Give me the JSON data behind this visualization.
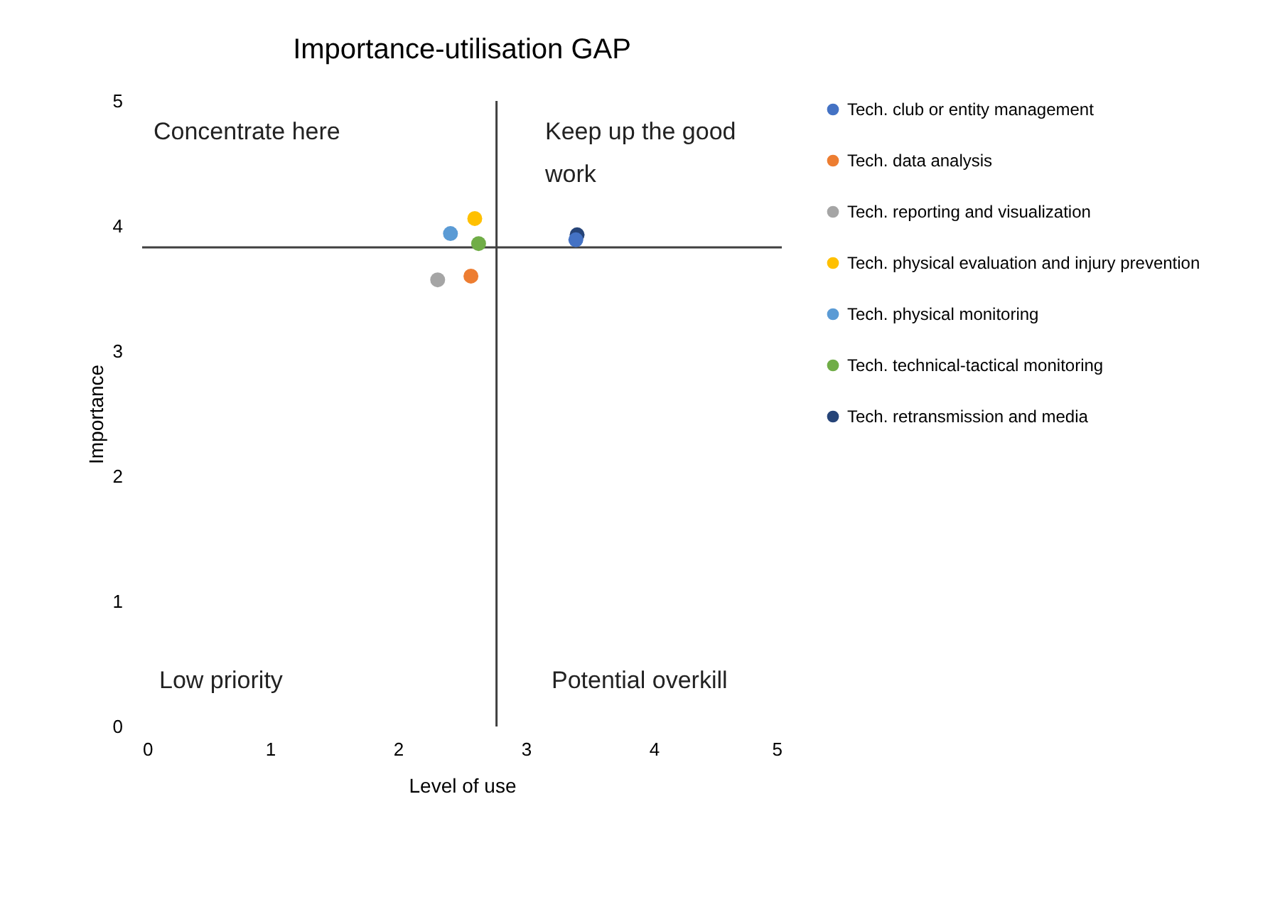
{
  "chart_data": {
    "type": "scatter",
    "title": "Importance-utilisation GAP",
    "xlabel": "Level of use",
    "ylabel": "Importance",
    "xlim": [
      0,
      5
    ],
    "xticks": [
      0,
      1,
      2,
      3,
      4,
      5
    ],
    "ylim": [
      0,
      5
    ],
    "yticks": [
      0,
      1,
      2,
      3,
      4,
      5
    ],
    "grid": false,
    "legend": "right",
    "marker": "circle",
    "series": [
      {
        "name": "Tech. club or entity management",
        "color": "#4472c4",
        "x": [
          3.39
        ],
        "values": [
          3.89
        ]
      },
      {
        "name": "Tech. data analysis",
        "color": "#ed7d31",
        "x": [
          2.57
        ],
        "values": [
          3.6
        ]
      },
      {
        "name": "Tech. reporting and visualization",
        "color": "#a5a5a5",
        "x": [
          2.31
        ],
        "values": [
          3.57
        ]
      },
      {
        "name": "Tech. physical evaluation and injury prevention",
        "color": "#ffc000",
        "x": [
          2.6
        ],
        "values": [
          4.06
        ]
      },
      {
        "name": "Tech. physical monitoring",
        "color": "#5b9bd5",
        "x": [
          2.41
        ],
        "values": [
          3.94
        ]
      },
      {
        "name": "Tech. technical-tactical monitoring",
        "color": "#70ad47",
        "x": [
          2.63
        ],
        "values": [
          3.86
        ]
      },
      {
        "name": "Tech. retransmission and media",
        "color": "#264478",
        "x": [
          3.4
        ],
        "values": [
          3.93
        ]
      }
    ],
    "ref_lines": [
      {
        "axis": "x",
        "value": 2.77,
        "color": "#404040"
      },
      {
        "axis": "y",
        "value": 3.83,
        "color": "#404040"
      }
    ],
    "annotations": [
      "Concentrate here",
      "Keep up the good work",
      "Low priority",
      "Potential overkill"
    ]
  }
}
